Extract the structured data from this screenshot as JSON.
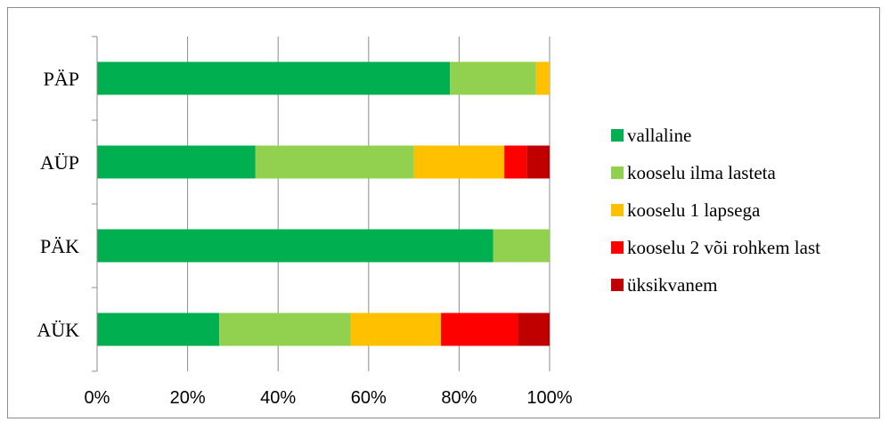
{
  "chart_data": {
    "type": "bar",
    "orientation": "horizontal",
    "stacked": "percent",
    "title": "",
    "xlabel": "",
    "ylabel": "",
    "xlim": [
      0,
      100
    ],
    "x_ticks": [
      "0%",
      "20%",
      "40%",
      "60%",
      "80%",
      "100%"
    ],
    "grid": "vertical",
    "legend_position": "right",
    "categories": [
      "PÄP",
      "AÜP",
      "PÄK",
      "AÜK"
    ],
    "series": [
      {
        "name": "vallaline",
        "color": "#00b050",
        "values": [
          78,
          35,
          87.5,
          27
        ]
      },
      {
        "name": "kooselu ilma lasteta",
        "color": "#92d050",
        "values": [
          19,
          35,
          12.5,
          29
        ]
      },
      {
        "name": "kooselu 1 lapsega",
        "color": "#ffc000",
        "values": [
          3,
          20,
          0,
          20
        ]
      },
      {
        "name": "kooselu 2 või rohkem last",
        "color": "#ff0000",
        "values": [
          0,
          5,
          0,
          17
        ]
      },
      {
        "name": "üksikvanem",
        "color": "#c00000",
        "values": [
          0,
          5,
          0,
          7
        ]
      }
    ]
  }
}
